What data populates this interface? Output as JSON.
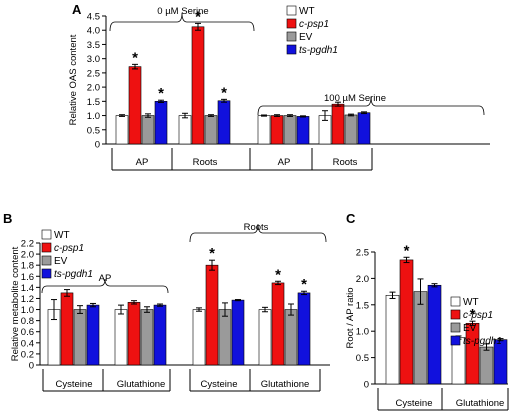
{
  "colors": {
    "WT": "#ffffff",
    "c-psp1": "#ee1111",
    "EV": "#9a9a9a",
    "ts-pgdh1": "#1111dd"
  },
  "legend_italic": [
    false,
    true,
    false,
    true
  ],
  "chart_data": [
    {
      "panel": "A",
      "type": "bar",
      "ylabel": "Relative OAS content",
      "ylim": [
        0,
        4.5
      ],
      "yticks": [
        "0",
        "0.5",
        "1.0",
        "1.5",
        "2.0",
        "2.5",
        "3.0",
        "3.5",
        "4.0",
        "4.5"
      ],
      "series_names": [
        "WT",
        "c-psp1",
        "EV",
        "ts-pgdh1"
      ],
      "groups": [
        {
          "label": "AP",
          "values": [
            1.0,
            2.72,
            1.0,
            1.5
          ],
          "errors": [
            0.03,
            0.08,
            0.06,
            0.04
          ],
          "stars": [
            false,
            true,
            false,
            true
          ]
        },
        {
          "label": "Roots",
          "values": [
            1.0,
            4.12,
            1.0,
            1.52
          ],
          "errors": [
            0.08,
            0.12,
            0.03,
            0.05
          ],
          "stars": [
            false,
            true,
            false,
            true
          ]
        },
        {
          "label": "AP",
          "values": [
            1.0,
            1.0,
            1.0,
            0.97
          ],
          "errors": [
            0.02,
            0.03,
            0.03,
            0.02
          ],
          "stars": [
            false,
            false,
            false,
            false
          ]
        },
        {
          "label": "Roots",
          "values": [
            1.0,
            1.4,
            1.02,
            1.1
          ],
          "errors": [
            0.17,
            0.07,
            0.03,
            0.03
          ],
          "stars": [
            false,
            false,
            false,
            false
          ]
        }
      ],
      "brackets": [
        {
          "label": "0 µM Serine"
        },
        {
          "label": "100 µM Serine"
        }
      ]
    },
    {
      "panel": "B",
      "type": "bar",
      "ylabel": "Relative metabolite content",
      "ylim": [
        0,
        2.2
      ],
      "yticks": [
        "0",
        "0.2",
        "0.4",
        "0.6",
        "0.8",
        "1.0",
        "1.2",
        "1.4",
        "1.6",
        "1.8",
        "2.0",
        "2.2"
      ],
      "series_names": [
        "WT",
        "c-psp1",
        "EV",
        "ts-pgdh1"
      ],
      "groups": [
        {
          "label": "Cysteine",
          "values": [
            1.0,
            1.3,
            1.0,
            1.08
          ],
          "errors": [
            0.18,
            0.06,
            0.07,
            0.03
          ],
          "stars": [
            false,
            false,
            false,
            false
          ]
        },
        {
          "label": "Glutathione",
          "values": [
            1.0,
            1.13,
            1.0,
            1.08
          ],
          "errors": [
            0.08,
            0.03,
            0.05,
            0.02
          ],
          "stars": [
            false,
            false,
            false,
            false
          ]
        },
        {
          "label": "Cysteine",
          "values": [
            1.0,
            1.8,
            1.0,
            1.17
          ],
          "errors": [
            0.03,
            0.09,
            0.12,
            0.01
          ],
          "stars": [
            false,
            true,
            false,
            false
          ]
        },
        {
          "label": "Glutathione",
          "values": [
            1.0,
            1.48,
            1.0,
            1.3
          ],
          "errors": [
            0.04,
            0.03,
            0.1,
            0.03
          ],
          "stars": [
            false,
            true,
            false,
            true
          ]
        }
      ],
      "brackets": [
        {
          "label": "AP"
        },
        {
          "label": "Roots"
        }
      ]
    },
    {
      "panel": "C",
      "type": "bar",
      "ylabel": "Root / AP ratio",
      "ylim": [
        0,
        2.5
      ],
      "yticks": [
        "0",
        "0.5",
        "1.0",
        "1.5",
        "2.0",
        "2.5"
      ],
      "series_names": [
        "WT",
        "c-psp1",
        "EV",
        "ts-pgdh1"
      ],
      "groups": [
        {
          "label": "Cysteine",
          "values": [
            1.68,
            2.35,
            1.75,
            1.87
          ],
          "errors": [
            0.06,
            0.05,
            0.24,
            0.03
          ],
          "stars": [
            false,
            true,
            false,
            false
          ]
        },
        {
          "label": "Glutathione",
          "values": [
            0.88,
            1.15,
            0.7,
            0.84
          ],
          "errors": [
            0.03,
            0.04,
            0.06,
            0.02
          ],
          "stars": [
            false,
            true,
            false,
            false
          ]
        }
      ],
      "brackets": []
    }
  ]
}
